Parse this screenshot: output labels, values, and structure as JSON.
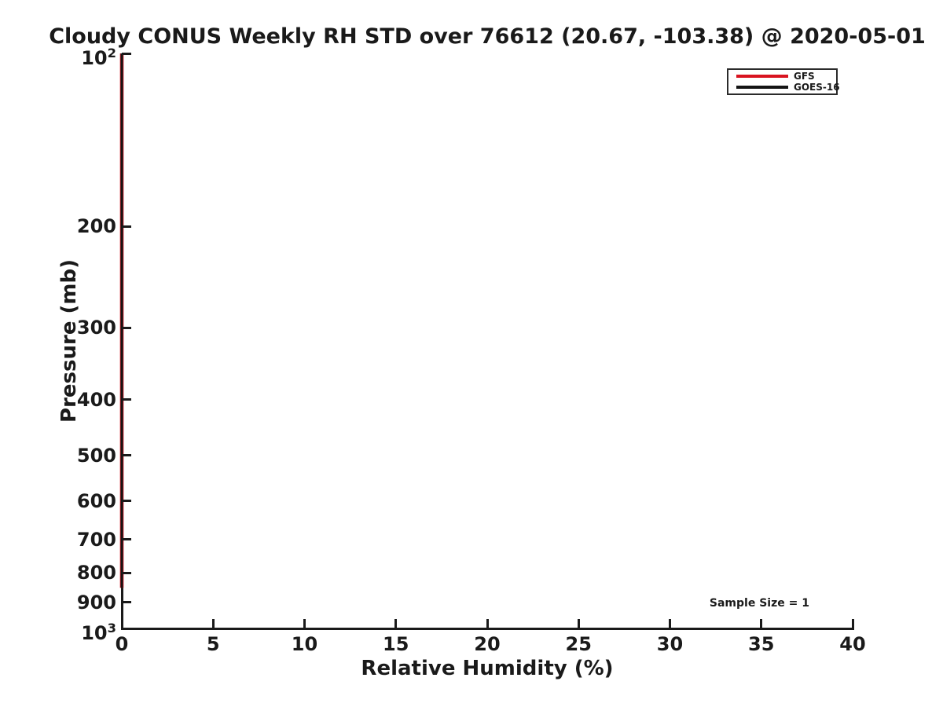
{
  "title": "Cloudy CONUS Weekly RH STD over 76612 (20.67, -103.38) @ 2020-05-01",
  "axes": {
    "xlabel": "Relative Humidity (%)",
    "ylabel": "Pressure (mb)"
  },
  "legend": {
    "position": "upper right",
    "items": [
      {
        "label": "GFS",
        "color": "#d91420"
      },
      {
        "label": "GOES-16",
        "color": "#141414"
      }
    ]
  },
  "colors": {
    "axis": "#1a1a1a",
    "background": "#ffffff",
    "gfs_red": "#d91420",
    "goes_black": "#141414"
  },
  "chart_data": {
    "type": "line",
    "title": "Cloudy CONUS Weekly RH STD over 76612 (20.67, -103.38) @ 2020-05-01",
    "xlabel": "Relative Humidity (%)",
    "ylabel": "Pressure (mb)",
    "xlim": [
      0,
      40
    ],
    "x_ticks": [
      0,
      5,
      10,
      15,
      20,
      25,
      30,
      35,
      40
    ],
    "yscale": "log",
    "y_axis_inverted": true,
    "ylim": [
      100,
      1000
    ],
    "y_ticks": [
      {
        "value": 100,
        "label": "10",
        "exp": "2"
      },
      {
        "value": 200,
        "label": "200"
      },
      {
        "value": 300,
        "label": "300"
      },
      {
        "value": 400,
        "label": "400"
      },
      {
        "value": 500,
        "label": "500"
      },
      {
        "value": 600,
        "label": "600"
      },
      {
        "value": 700,
        "label": "700"
      },
      {
        "value": 800,
        "label": "800"
      },
      {
        "value": 900,
        "label": "900"
      },
      {
        "value": 1000,
        "label": "10",
        "exp": "3"
      }
    ],
    "grid": false,
    "legend_position": "upper right",
    "pressure_levels": [
      100,
      150,
      200,
      250,
      300,
      400,
      500,
      600,
      700,
      800,
      850
    ],
    "series": [
      {
        "name": "GFS",
        "color": "#d91420",
        "rh_std": [
          0,
          0,
          0,
          0,
          0,
          0,
          0,
          0,
          0,
          0,
          0
        ]
      },
      {
        "name": "GOES-16",
        "color": "#141414",
        "rh_std": [
          0,
          0,
          0,
          0,
          0,
          0,
          0,
          0,
          0,
          0,
          0
        ]
      }
    ],
    "annotation": {
      "text": "Sample Size = 1",
      "x": 34.9,
      "pressure": 905
    }
  }
}
